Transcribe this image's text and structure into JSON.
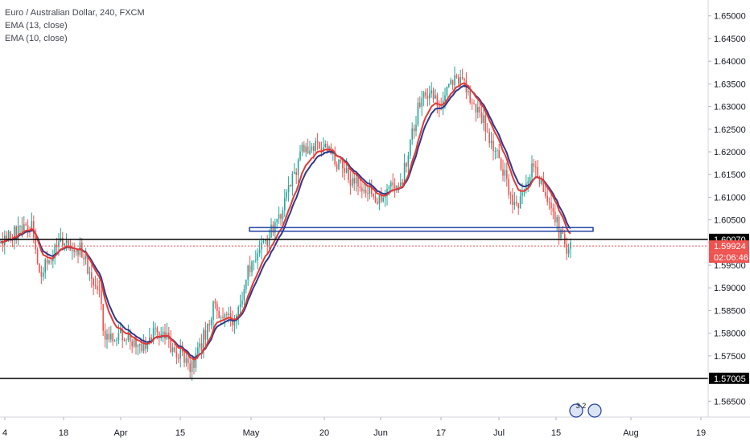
{
  "legend": {
    "title": "Euro / Australian Dollar, 240, FXCM",
    "ema1": "EMA (13, close)",
    "ema2": "EMA (10, close)"
  },
  "colors": {
    "up_candle": "#26a69a",
    "down_candle": "#ef5350",
    "ema13": "#2b3a8c",
    "ema10": "#e53935",
    "hline": "#000000",
    "price_line": "#ef5350",
    "rect": "#1e3f9e",
    "label_dark_bg": "#000000",
    "label_red_bg": "#ef5350",
    "axis_text": "#131722"
  },
  "badges": {
    "events_count": "3 2"
  },
  "chart_data": {
    "type": "candlestick",
    "title": "Euro / Australian Dollar, 240, FXCM",
    "xlabel": "",
    "ylabel": "",
    "ylim": [
      1.5615,
      1.6535
    ],
    "y_ticks": [
      "1.65000",
      "1.64500",
      "1.64000",
      "1.63500",
      "1.63000",
      "1.62500",
      "1.62000",
      "1.61500",
      "1.61000",
      "1.60500",
      "1.60000",
      "1.59500",
      "1.59000",
      "1.58500",
      "1.58000",
      "1.57500",
      "1.57000",
      "1.56500"
    ],
    "x_ticks": [
      "4",
      "18",
      "Apr",
      "15",
      "May",
      "20",
      "Jun",
      "17",
      "Jul",
      "15",
      "Aug",
      "19"
    ],
    "grid": false,
    "indicators": [
      {
        "name": "EMA (13, close)",
        "color": "#2b3a8c"
      },
      {
        "name": "EMA (10, close)",
        "color": "#e53935"
      }
    ],
    "horizontal_lines": [
      {
        "price": 1.6007,
        "label": "1.60070"
      },
      {
        "price": 1.57005,
        "label": "1.57005"
      }
    ],
    "current_price": {
      "price": 1.59924,
      "label": "1.59924",
      "countdown": "02:06:46"
    },
    "zone": {
      "y_top": 1.6033,
      "y_bottom": 1.6025,
      "x_start": "May",
      "x_end": "Jul 22"
    },
    "price_path": [
      [
        "4",
        1.6
      ],
      [
        "11",
        1.6045
      ],
      [
        "14",
        1.593
      ],
      [
        "18",
        1.6005
      ],
      [
        "21",
        1.5985
      ],
      [
        "26",
        1.5875
      ],
      [
        "28",
        1.5795
      ],
      [
        "Apr",
        1.58
      ],
      [
        "8",
        1.577
      ],
      [
        "11",
        1.5805
      ],
      [
        "15",
        1.5755
      ],
      [
        "18",
        1.572
      ],
      [
        "24",
        1.5855
      ],
      [
        "26",
        1.582
      ],
      [
        "May",
        1.5955
      ],
      [
        "6",
        1.6045
      ],
      [
        "13",
        1.62
      ],
      [
        "20",
        1.621
      ],
      [
        "27",
        1.613
      ],
      [
        "Jun",
        1.6095
      ],
      [
        "5",
        1.614
      ],
      [
        "10",
        1.634
      ],
      [
        "17",
        1.631
      ],
      [
        "21",
        1.6365
      ],
      [
        "26",
        1.627
      ],
      [
        "Jul",
        1.6185
      ],
      [
        "5",
        1.607
      ],
      [
        "10",
        1.6175
      ],
      [
        "15",
        1.605
      ],
      [
        "17",
        1.5975
      ],
      [
        "19",
        1.6005
      ]
    ]
  }
}
